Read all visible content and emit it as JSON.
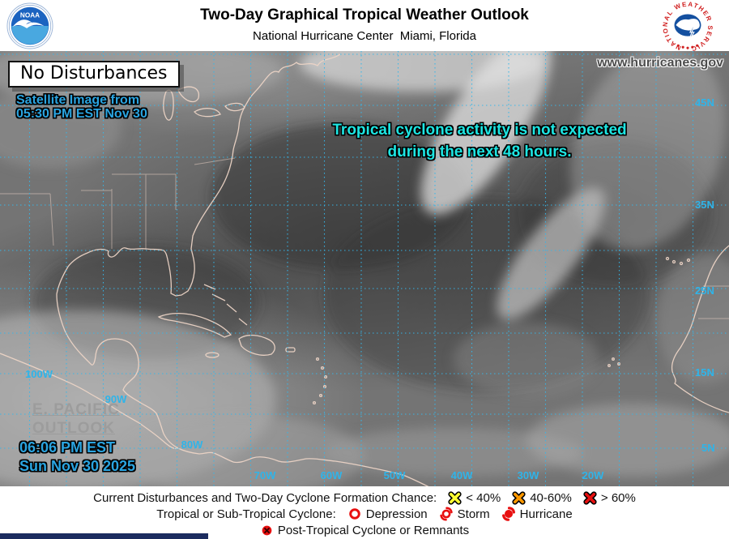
{
  "header": {
    "title": "Two-Day Graphical Tropical Weather Outlook",
    "subtitle": "National Hurricane Center  Miami, Florida",
    "noaa_logo_text": "NOAA",
    "nws_logo_text": "NATIONAL WEATHER SERVICE"
  },
  "map": {
    "website": "www.hurricanes.gov",
    "status_label": "No Disturbances",
    "satellite_caption": {
      "line1": "Satellite Image from",
      "line2": "05:30 PM EST Nov 30"
    },
    "message": {
      "line1": "Tropical cyclone activity is not expected",
      "line2": "during the next 48 hours."
    },
    "epac_link": {
      "line1": "E. PACIFIC",
      "line2": "OUTLOOK"
    },
    "issued": {
      "line1": "06:06 PM EST",
      "line2": "Sun Nov 30 2025"
    },
    "lat_labels": [
      "45N",
      "35N",
      "25N",
      "15N",
      "5N"
    ],
    "lon_labels": [
      "100W",
      "90W",
      "80W",
      "70W",
      "60W",
      "50W",
      "40W",
      "30W",
      "20W"
    ]
  },
  "legend": {
    "chance_title": "Current Disturbances and Two-Day Cyclone Formation Chance:",
    "chance_items": [
      {
        "label": "< 40%",
        "color": "#ffff33"
      },
      {
        "label": "40-60%",
        "color": "#ff9900"
      },
      {
        "label": "> 60%",
        "color": "#e81010"
      }
    ],
    "cyclone_title": "Tropical or Sub-Tropical Cyclone:",
    "cyclone_items": [
      {
        "label": "Depression"
      },
      {
        "label": "Storm"
      },
      {
        "label": "Hurricane"
      }
    ],
    "post_tropical_label": "Post-Tropical Cyclone or Remnants"
  },
  "colors": {
    "grid_cyan": "#2fb4e9",
    "message_cyan": "#1de5e2",
    "caption_blue": "#2aa4e0",
    "coastline_tan": "#ecd4c6",
    "symbol_red": "#e81010",
    "symbol_orange": "#ff9900",
    "symbol_yellow": "#ffff33"
  }
}
